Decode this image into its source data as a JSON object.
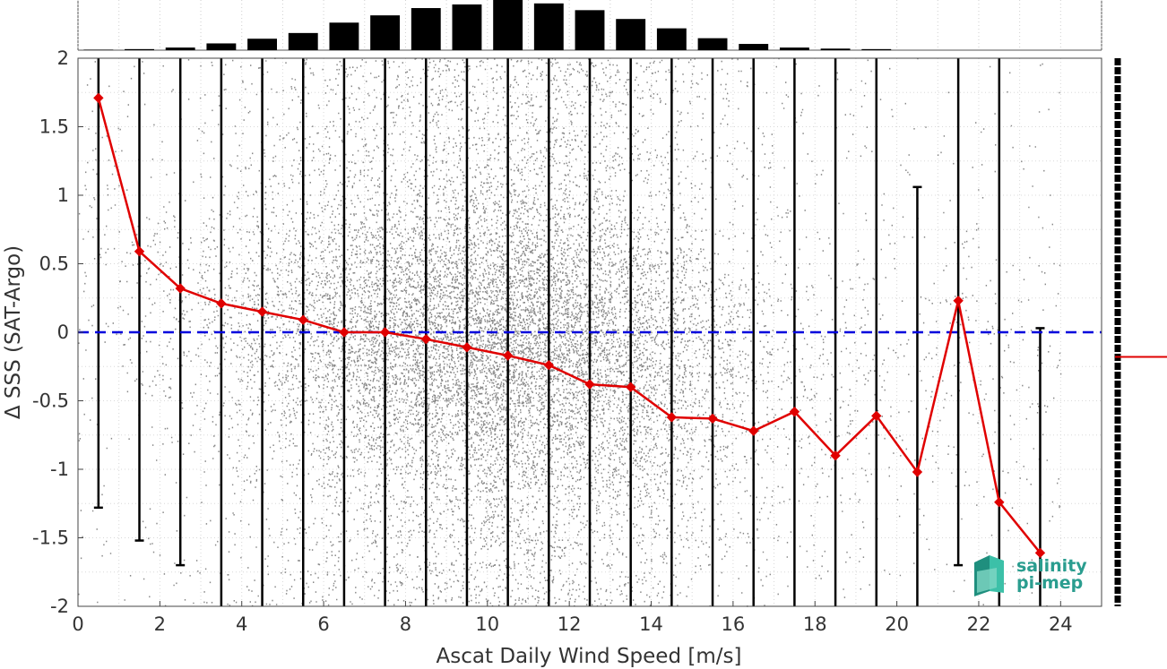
{
  "chart_data": {
    "type": "line",
    "xlabel": "Ascat Daily Wind Speed [m/s]",
    "ylabel": "Δ SSS (SAT-Argo)",
    "xlim": [
      0,
      25
    ],
    "ylim": [
      -2,
      2
    ],
    "xticks": [
      "0",
      "2",
      "4",
      "6",
      "8",
      "10",
      "12",
      "14",
      "16",
      "18",
      "20",
      "22",
      "24"
    ],
    "yticks": [
      "-2",
      "-1.5",
      "-1",
      "-0.5",
      "0",
      "0.5",
      "1",
      "1.5",
      "2"
    ],
    "grid": true,
    "series": [
      {
        "type": "line-with-markers",
        "color": "#e00000",
        "x": [
          0.5,
          1.5,
          2.5,
          3.5,
          4.5,
          5.5,
          6.5,
          7.5,
          8.5,
          9.5,
          10.5,
          11.5,
          12.5,
          13.5,
          14.5,
          15.5,
          16.5,
          17.5,
          18.5,
          19.5,
          20.5,
          21.5,
          22.5,
          23.5
        ],
        "y": [
          1.71,
          0.59,
          0.32,
          0.21,
          0.15,
          0.09,
          0.0,
          0.0,
          -0.05,
          -0.11,
          -0.17,
          -0.24,
          -0.38,
          -0.4,
          -0.62,
          -0.63,
          -0.72,
          -0.58,
          -0.9,
          -0.61,
          -1.02,
          0.23,
          -1.24,
          -1.61
        ]
      }
    ],
    "error_bars": {
      "color": "#000000",
      "x": [
        0.5,
        1.5,
        2.5,
        3.5,
        4.5,
        5.5,
        6.5,
        7.5,
        8.5,
        9.5,
        10.5,
        11.5,
        12.5,
        13.5,
        14.5,
        15.5,
        16.5,
        17.5,
        18.5,
        19.5,
        20.5,
        21.5,
        22.5,
        23.5
      ],
      "low": [
        -1.28,
        -1.52,
        -1.7,
        -2,
        -2,
        -2,
        -2,
        -2,
        -2,
        -2,
        -2,
        -2,
        -2,
        -2,
        -2,
        -2,
        -2,
        -2,
        -2,
        -2,
        -2,
        -1.7,
        -2,
        -2
      ],
      "high": [
        2,
        2,
        2,
        2,
        2,
        2,
        2,
        2,
        2,
        2,
        2,
        2,
        2,
        2,
        2,
        2,
        2,
        2,
        2,
        2,
        1.06,
        2,
        2,
        0.03
      ]
    },
    "reference_line": {
      "y": 0,
      "color": "#0000dd",
      "style": "dashed"
    },
    "histogram_top": {
      "color": "#000000",
      "bins": [
        0.5,
        1.5,
        2.5,
        3.5,
        4.5,
        5.5,
        6.5,
        7.5,
        8.5,
        9.5,
        10.5,
        11.5,
        12.5,
        13.5,
        14.5,
        15.5,
        16.5,
        17.5,
        18.5,
        19.5,
        20.5,
        21.5,
        22.5,
        23.5
      ],
      "relative_counts": [
        0.01,
        0.02,
        0.05,
        0.13,
        0.22,
        0.33,
        0.53,
        0.67,
        0.81,
        0.88,
        1.0,
        0.9,
        0.77,
        0.6,
        0.42,
        0.23,
        0.12,
        0.05,
        0.03,
        0.02,
        0.0,
        0.0,
        0.0,
        0.0
      ]
    },
    "scatter_color": "#888888",
    "side_marker": {
      "y": -0.18,
      "color": "#e00000"
    }
  },
  "logo": {
    "line1": "salinity",
    "line2": "pi-mep",
    "color": "#2a9d8f"
  }
}
